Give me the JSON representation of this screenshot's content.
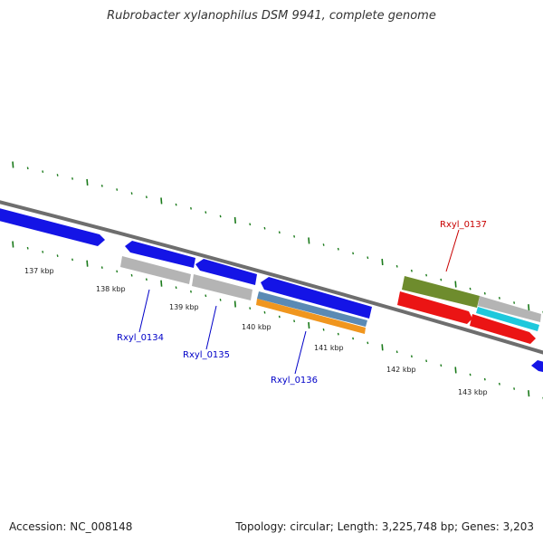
{
  "title": "Rubrobacter xylanophilus DSM 9941, complete genome",
  "footer": {
    "accession": "Accession: NC_008148",
    "stats": "Topology: circular; Length: 3,225,748 bp; Genes: 3,203"
  },
  "colors": {
    "backbone": "#6e6e6e",
    "ticks": "#1a7a1a",
    "blue_gene": "#1414e6",
    "grey_gene": "#b4b4b4",
    "steel_gene": "#5a8ab4",
    "orange_gene": "#f0961e",
    "olive_gene": "#6e8c2d",
    "red_gene": "#eb1414",
    "cyan_gene": "#1ec8dc",
    "label_blue": "#0000c8",
    "label_red": "#c80000"
  },
  "scale_labels": [
    "137 kbp",
    "138 kbp",
    "139 kbp",
    "140 kbp",
    "141 kbp",
    "142 kbp",
    "143 kbp"
  ],
  "gene_labels": [
    "Rxyl_0134",
    "Rxyl_0135",
    "Rxyl_0136",
    "Rxyl_0137"
  ]
}
